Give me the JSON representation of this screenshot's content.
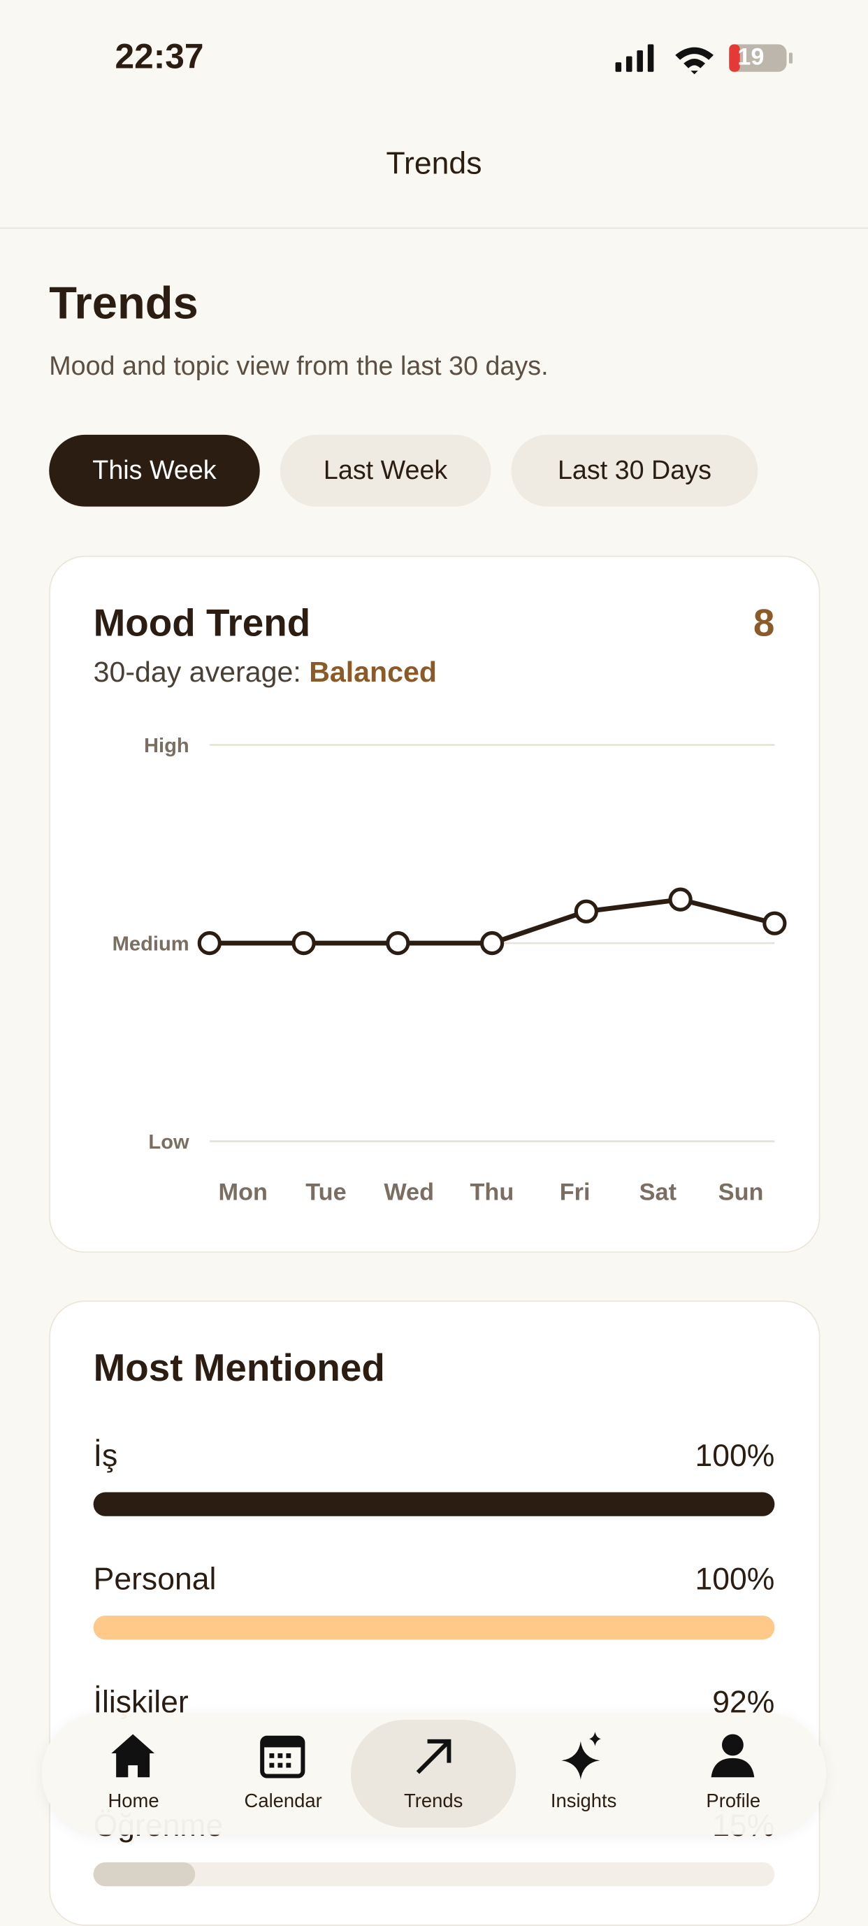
{
  "status": {
    "time": "22:37",
    "battery": "19"
  },
  "nav_title": "Trends",
  "header": {
    "title": "Trends",
    "subtitle": "Mood and topic view from the last 30 days."
  },
  "tabs": [
    "This Week",
    "Last Week",
    "Last 30 Days"
  ],
  "mood_card": {
    "title": "Mood Trend",
    "score": 8,
    "average_label": "30-day average:",
    "average_value": "Balanced"
  },
  "chart_data": {
    "type": "line",
    "categories": [
      "Mon",
      "Tue",
      "Wed",
      "Thu",
      "Fri",
      "Sat",
      "Sun"
    ],
    "values": [
      5,
      5,
      5,
      5,
      5.8,
      6.1,
      5.5
    ],
    "color": "#2b1d12",
    "ylim": [
      0,
      10
    ],
    "yticks": [
      {
        "value": 0,
        "label": "Low"
      },
      {
        "value": 5,
        "label": "Medium"
      },
      {
        "value": 10,
        "label": "High"
      }
    ],
    "grid": true
  },
  "mentions": {
    "title": "Most Mentioned",
    "items": [
      {
        "name": "İş",
        "value": 100,
        "value_label": "100%",
        "color": "#2b1d12"
      },
      {
        "name": "Personal",
        "value": 100,
        "value_label": "100%",
        "color": "#ffc98a"
      },
      {
        "name": "İlişkiler",
        "value": 92,
        "value_label": "92%",
        "color": "#e3f5d6"
      },
      {
        "name": "Öğrenme",
        "value": 15,
        "value_label": "15%",
        "color": "#d9d2c6"
      }
    ]
  },
  "bottom_nav": [
    "Home",
    "Calendar",
    "Trends",
    "Insights",
    "Profile"
  ]
}
